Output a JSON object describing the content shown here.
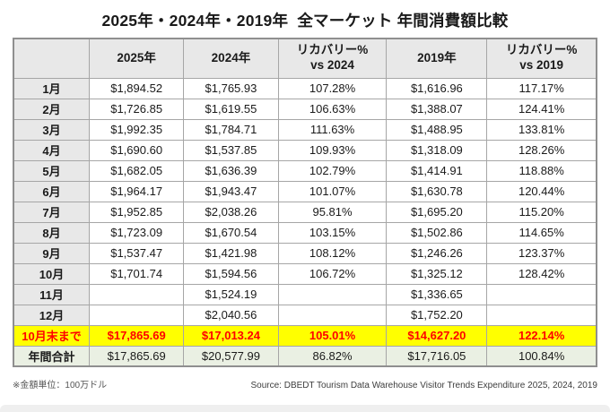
{
  "title": "2025年・2024年・2019年  全マーケット 年間消費額比較",
  "footer": {
    "unit_note": "※金額単位：100万ドル",
    "source": "Source: DBEDT Tourism Data Warehouse Visitor Trends Expenditure 2025, 2024, 2019"
  },
  "colors": {
    "header_bg": "#e8e8e8",
    "month_col_bg": "#e8e8e8",
    "grid_border": "#a6a6a6",
    "outer_border": "#8f8f8f",
    "highlight_row_bg": "#ffff00",
    "highlight_row_text": "#ff0000",
    "total_row_bg": "#eaf0e3"
  },
  "chart_data": {
    "type": "table",
    "title": "2025年・2024年・2019年  全マーケット 年間消費額比較",
    "columns": [
      "",
      "2025年",
      "2024年",
      "リカバリー%\nvs 2024",
      "2019年",
      "リカバリー%\nvs 2019"
    ],
    "rows": [
      [
        "1月",
        "$1,894.52",
        "$1,765.93",
        "107.28%",
        "$1,616.96",
        "117.17%"
      ],
      [
        "2月",
        "$1,726.85",
        "$1,619.55",
        "106.63%",
        "$1,388.07",
        "124.41%"
      ],
      [
        "3月",
        "$1,992.35",
        "$1,784.71",
        "111.63%",
        "$1,488.95",
        "133.81%"
      ],
      [
        "4月",
        "$1,690.60",
        "$1,537.85",
        "109.93%",
        "$1,318.09",
        "128.26%"
      ],
      [
        "5月",
        "$1,682.05",
        "$1,636.39",
        "102.79%",
        "$1,414.91",
        "118.88%"
      ],
      [
        "6月",
        "$1,964.17",
        "$1,943.47",
        "101.07%",
        "$1,630.78",
        "120.44%"
      ],
      [
        "7月",
        "$1,952.85",
        "$2,038.26",
        "95.81%",
        "$1,695.20",
        "115.20%"
      ],
      [
        "8月",
        "$1,723.09",
        "$1,670.54",
        "103.15%",
        "$1,502.86",
        "114.65%"
      ],
      [
        "9月",
        "$1,537.47",
        "$1,421.98",
        "108.12%",
        "$1,246.26",
        "123.37%"
      ],
      [
        "10月",
        "$1,701.74",
        "$1,594.56",
        "106.72%",
        "$1,325.12",
        "128.42%"
      ],
      [
        "11月",
        "",
        "$1,524.19",
        "",
        "$1,336.65",
        ""
      ],
      [
        "12月",
        "",
        "$2,040.56",
        "",
        "$1,752.20",
        ""
      ],
      [
        "10月末まで",
        "$17,865.69",
        "$17,013.24",
        "105.01%",
        "$14,627.20",
        "122.14%"
      ],
      [
        "年間合計",
        "$17,865.69",
        "$20,577.99",
        "86.82%",
        "$17,716.05",
        "100.84%"
      ]
    ],
    "row_styles": [
      "month",
      "month",
      "month",
      "month",
      "month",
      "month",
      "month",
      "month",
      "month",
      "month",
      "month",
      "month",
      "highlight",
      "total"
    ],
    "unit_note": "※金額単位：100万ドル",
    "source": "Source: DBEDT Tourism Data Warehouse Visitor Trends Expenditure 2025, 2024, 2019",
    "legend_position": "none",
    "grid": true
  }
}
